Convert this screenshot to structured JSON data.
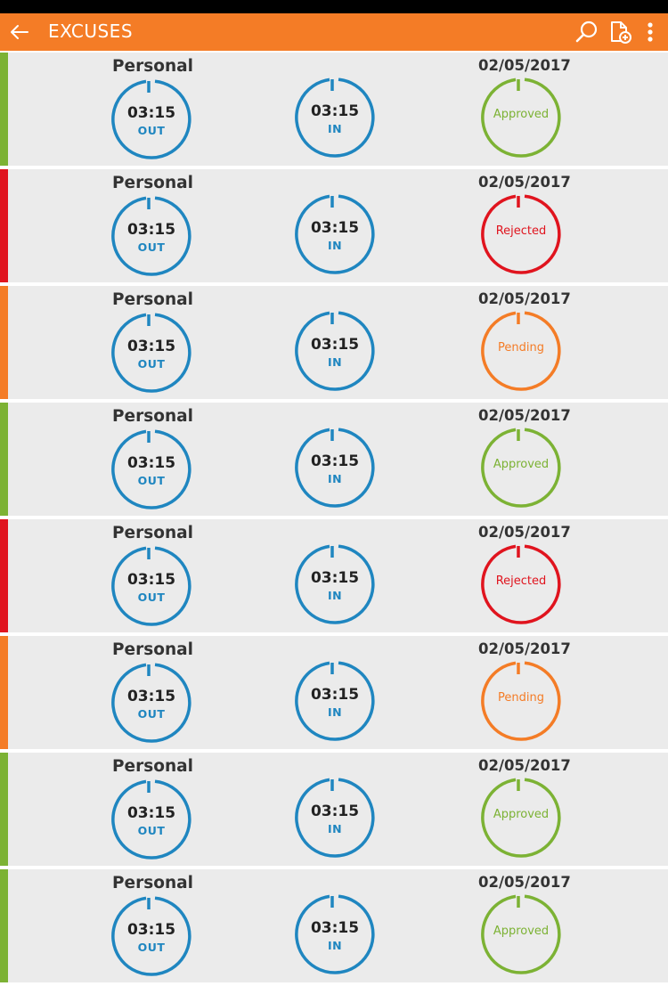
{
  "appbar": {
    "title": "EXCUSES",
    "bg": "#f47c26"
  },
  "colors": {
    "blue": "#1f86c0",
    "approved": "#7cb234",
    "rejected": "#e0141e",
    "pending": "#f47c26"
  },
  "rows": [
    {
      "category": "Personal",
      "date": "02/05/2017",
      "out_time": "03:15",
      "out_label": "OUT",
      "in_time": "03:15",
      "in_label": "IN",
      "status": "Approved",
      "color": "#7cb234"
    },
    {
      "category": "Personal",
      "date": "02/05/2017",
      "out_time": "03:15",
      "out_label": "OUT",
      "in_time": "03:15",
      "in_label": "IN",
      "status": "Rejected",
      "color": "#e0141e"
    },
    {
      "category": "Personal",
      "date": "02/05/2017",
      "out_time": "03:15",
      "out_label": "OUT",
      "in_time": "03:15",
      "in_label": "IN",
      "status": "Pending",
      "color": "#f47c26"
    },
    {
      "category": "Personal",
      "date": "02/05/2017",
      "out_time": "03:15",
      "out_label": "OUT",
      "in_time": "03:15",
      "in_label": "IN",
      "status": "Approved",
      "color": "#7cb234"
    },
    {
      "category": "Personal",
      "date": "02/05/2017",
      "out_time": "03:15",
      "out_label": "OUT",
      "in_time": "03:15",
      "in_label": "IN",
      "status": "Rejected",
      "color": "#e0141e"
    },
    {
      "category": "Personal",
      "date": "02/05/2017",
      "out_time": "03:15",
      "out_label": "OUT",
      "in_time": "03:15",
      "in_label": "IN",
      "status": "Pending",
      "color": "#f47c26"
    },
    {
      "category": "Personal",
      "date": "02/05/2017",
      "out_time": "03:15",
      "out_label": "OUT",
      "in_time": "03:15",
      "in_label": "IN",
      "status": "Approved",
      "color": "#7cb234"
    },
    {
      "category": "Personal",
      "date": "02/05/2017",
      "out_time": "03:15",
      "out_label": "OUT",
      "in_time": "03:15",
      "in_label": "IN",
      "status": "Approved",
      "color": "#7cb234"
    }
  ]
}
